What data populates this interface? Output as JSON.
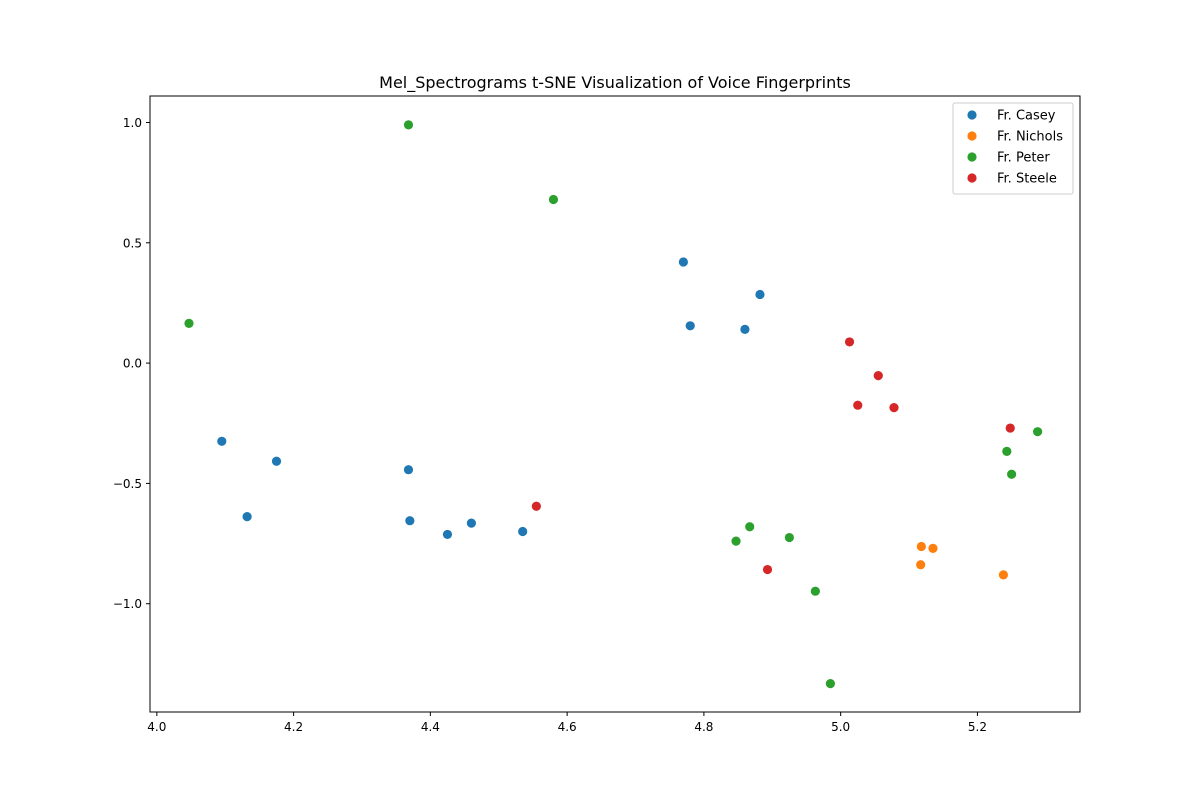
{
  "chart_data": {
    "type": "scatter",
    "title": "Mel_Spectrograms t-SNE Visualization of Voice Fingerprints",
    "xlabel": "",
    "ylabel": "",
    "xlim": [
      3.99,
      5.35
    ],
    "ylim": [
      -1.45,
      1.11
    ],
    "xticks": [
      4.0,
      4.2,
      4.4,
      4.6,
      4.8,
      5.0,
      5.2
    ],
    "xtick_labels": [
      "4.0",
      "4.2",
      "4.4",
      "4.6",
      "4.8",
      "5.0",
      "5.2"
    ],
    "yticks": [
      1.0,
      0.5,
      0.0,
      -0.5,
      -1.0
    ],
    "ytick_labels": [
      "1.0",
      "0.5",
      "0.0",
      "−0.5",
      "−1.0"
    ],
    "grid": false,
    "legend_position": "top-right",
    "series": [
      {
        "name": "Fr. Casey",
        "color": "#1f77b4",
        "points": [
          [
            4.095,
            -0.325
          ],
          [
            4.132,
            -0.638
          ],
          [
            4.175,
            -0.408
          ],
          [
            4.368,
            -0.443
          ],
          [
            4.37,
            -0.655
          ],
          [
            4.425,
            -0.712
          ],
          [
            4.46,
            -0.665
          ],
          [
            4.535,
            -0.7
          ],
          [
            4.77,
            0.42
          ],
          [
            4.78,
            0.155
          ],
          [
            4.86,
            0.14
          ],
          [
            4.882,
            0.285
          ]
        ]
      },
      {
        "name": "Fr. Nichols",
        "color": "#ff7f0e",
        "points": [
          [
            5.118,
            -0.762
          ],
          [
            5.135,
            -0.77
          ],
          [
            5.117,
            -0.838
          ],
          [
            5.238,
            -0.88
          ]
        ]
      },
      {
        "name": "Fr. Peter",
        "color": "#2ca02c",
        "points": [
          [
            4.368,
            0.99
          ],
          [
            4.58,
            0.68
          ],
          [
            4.047,
            0.165
          ],
          [
            4.847,
            -0.74
          ],
          [
            4.867,
            -0.68
          ],
          [
            4.925,
            -0.725
          ],
          [
            4.963,
            -0.948
          ],
          [
            4.985,
            -1.332
          ],
          [
            5.243,
            -0.367
          ],
          [
            5.25,
            -0.462
          ],
          [
            5.288,
            -0.285
          ]
        ]
      },
      {
        "name": "Fr. Steele",
        "color": "#d62728",
        "points": [
          [
            4.555,
            -0.595
          ],
          [
            4.893,
            -0.858
          ],
          [
            5.013,
            0.088
          ],
          [
            5.055,
            -0.052
          ],
          [
            5.025,
            -0.175
          ],
          [
            5.078,
            -0.185
          ],
          [
            5.248,
            -0.27
          ]
        ]
      }
    ]
  }
}
